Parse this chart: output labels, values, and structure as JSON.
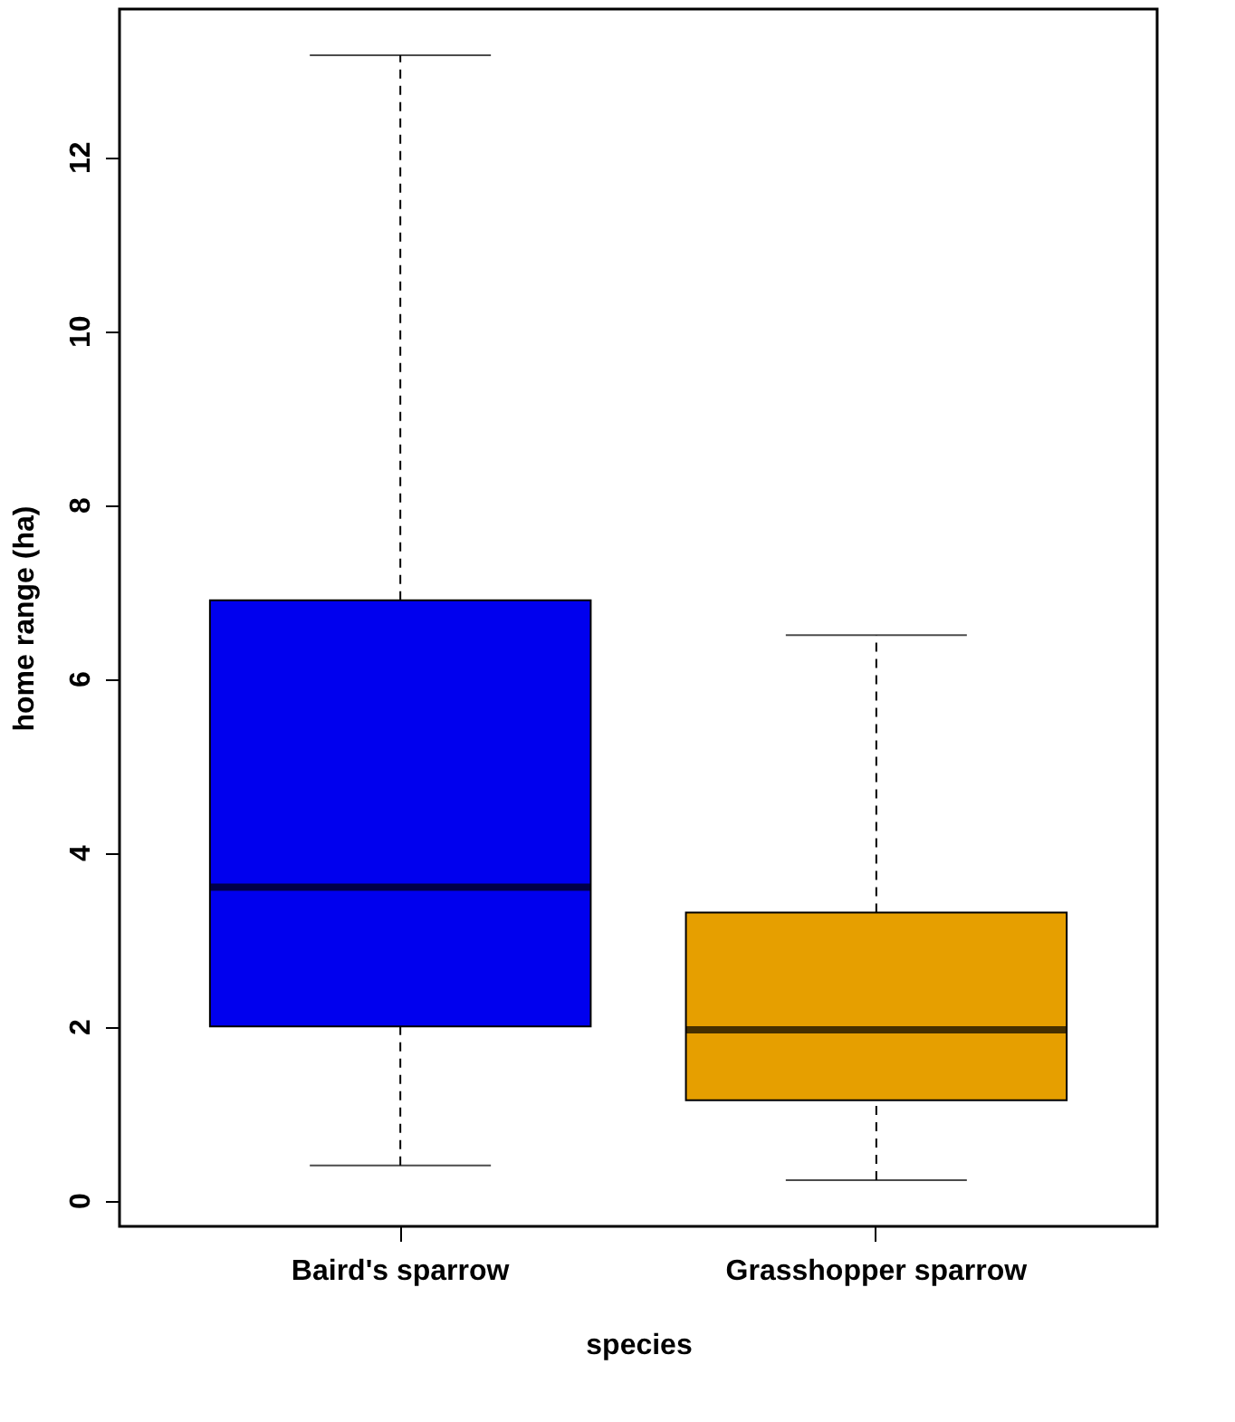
{
  "chart_data": {
    "type": "box",
    "xlabel": "species",
    "ylabel": "home range (ha)",
    "categories": [
      "Baird's sparrow",
      "Grasshopper sparrow"
    ],
    "colors": [
      "#0000ee",
      "#e69f00"
    ],
    "boxes": [
      {
        "low": 0.4,
        "q1": 2.0,
        "median": 3.6,
        "q3": 6.9,
        "high": 13.17
      },
      {
        "low": 0.23,
        "q1": 1.15,
        "median": 1.96,
        "q3": 3.31,
        "high": 6.5
      }
    ],
    "ylim": [
      -0.3,
      13.7
    ],
    "yticks": [
      0,
      2,
      4,
      6,
      8,
      10,
      12
    ]
  }
}
